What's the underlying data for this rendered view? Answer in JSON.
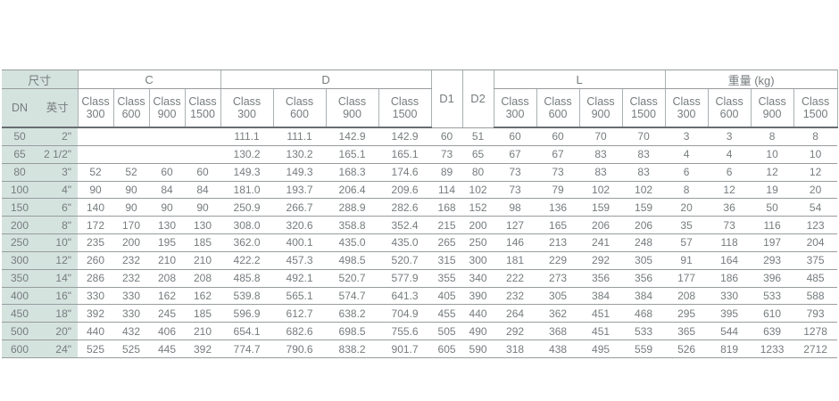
{
  "table": {
    "header": {
      "size_label": "尺寸",
      "dn_label": "DN",
      "inch_label": "英寸",
      "c_label": "C",
      "d_label": "D",
      "d1_label": "D1",
      "d2_label": "D2",
      "l_label": "L",
      "weight_label": "重量 (kg)",
      "class_word": "Class",
      "class_ratings": [
        "300",
        "600",
        "900",
        "1500"
      ],
      "sections": [
        "c",
        "d",
        "l",
        "w"
      ]
    },
    "colors": {
      "size_column_bg": "#d5e3df",
      "text": "#767c7e",
      "row_line": "#979c9e",
      "header_heavy_line": "#676d70",
      "header_vertical_line": "#abb1b3"
    },
    "rows": [
      {
        "dn": "50",
        "inch": "2\"",
        "c": [
          "",
          "",
          "",
          ""
        ],
        "d": [
          "111.1",
          "111.1",
          "142.9",
          "142.9"
        ],
        "d1": "60",
        "d2": "51",
        "l": [
          "60",
          "60",
          "70",
          "70"
        ],
        "w": [
          "3",
          "3",
          "8",
          "8"
        ]
      },
      {
        "dn": "65",
        "inch": "2 1/2\"",
        "c": [
          "",
          "",
          "",
          ""
        ],
        "d": [
          "130.2",
          "130.2",
          "165.1",
          "165.1"
        ],
        "d1": "73",
        "d2": "65",
        "l": [
          "67",
          "67",
          "83",
          "83"
        ],
        "w": [
          "4",
          "4",
          "10",
          "10"
        ]
      },
      {
        "dn": "80",
        "inch": "3\"",
        "c": [
          "52",
          "52",
          "60",
          "60"
        ],
        "d": [
          "149.3",
          "149.3",
          "168.3",
          "174.6"
        ],
        "d1": "89",
        "d2": "80",
        "l": [
          "73",
          "73",
          "83",
          "83"
        ],
        "w": [
          "6",
          "6",
          "12",
          "12"
        ]
      },
      {
        "dn": "100",
        "inch": "4\"",
        "c": [
          "90",
          "90",
          "84",
          "84"
        ],
        "d": [
          "181.0",
          "193.7",
          "206.4",
          "209.6"
        ],
        "d1": "114",
        "d2": "102",
        "l": [
          "73",
          "79",
          "102",
          "102"
        ],
        "w": [
          "8",
          "12",
          "19",
          "20"
        ]
      },
      {
        "dn": "150",
        "inch": "6\"",
        "c": [
          "140",
          "90",
          "90",
          "90"
        ],
        "d": [
          "250.9",
          "266.7",
          "288.9",
          "282.6"
        ],
        "d1": "168",
        "d2": "152",
        "l": [
          "98",
          "136",
          "159",
          "159"
        ],
        "w": [
          "20",
          "36",
          "50",
          "54"
        ]
      },
      {
        "dn": "200",
        "inch": "8\"",
        "c": [
          "172",
          "170",
          "130",
          "130"
        ],
        "d": [
          "308.0",
          "320.6",
          "358.8",
          "352.4"
        ],
        "d1": "215",
        "d2": "200",
        "l": [
          "127",
          "165",
          "206",
          "206"
        ],
        "w": [
          "35",
          "73",
          "116",
          "123"
        ]
      },
      {
        "dn": "250",
        "inch": "10\"",
        "c": [
          "235",
          "200",
          "195",
          "185"
        ],
        "d": [
          "362.0",
          "400.1",
          "435.0",
          "435.0"
        ],
        "d1": "265",
        "d2": "250",
        "l": [
          "146",
          "213",
          "241",
          "248"
        ],
        "w": [
          "57",
          "118",
          "197",
          "204"
        ]
      },
      {
        "dn": "300",
        "inch": "12\"",
        "c": [
          "260",
          "232",
          "210",
          "210"
        ],
        "d": [
          "422.2",
          "457.3",
          "498.5",
          "520.7"
        ],
        "d1": "315",
        "d2": "300",
        "l": [
          "181",
          "229",
          "292",
          "305"
        ],
        "w": [
          "91",
          "164",
          "293",
          "375"
        ]
      },
      {
        "dn": "350",
        "inch": "14\"",
        "c": [
          "286",
          "232",
          "208",
          "208"
        ],
        "d": [
          "485.8",
          "492.1",
          "520.7",
          "577.9"
        ],
        "d1": "355",
        "d2": "340",
        "l": [
          "222",
          "273",
          "356",
          "356"
        ],
        "w": [
          "177",
          "186",
          "396",
          "485"
        ]
      },
      {
        "dn": "400",
        "inch": "16\"",
        "c": [
          "330",
          "330",
          "162",
          "162"
        ],
        "d": [
          "539.8",
          "565.1",
          "574.7",
          "641.3"
        ],
        "d1": "405",
        "d2": "390",
        "l": [
          "232",
          "305",
          "384",
          "384"
        ],
        "w": [
          "208",
          "330",
          "533",
          "588"
        ]
      },
      {
        "dn": "450",
        "inch": "18\"",
        "c": [
          "392",
          "330",
          "245",
          "185"
        ],
        "d": [
          "596.9",
          "612.7",
          "638.2",
          "704.9"
        ],
        "d1": "455",
        "d2": "440",
        "l": [
          "264",
          "362",
          "451",
          "468"
        ],
        "w": [
          "295",
          "395",
          "610",
          "793"
        ]
      },
      {
        "dn": "500",
        "inch": "20\"",
        "c": [
          "440",
          "432",
          "406",
          "210"
        ],
        "d": [
          "654.1",
          "682.6",
          "698.5",
          "755.6"
        ],
        "d1": "505",
        "d2": "490",
        "l": [
          "292",
          "368",
          "451",
          "533"
        ],
        "w": [
          "365",
          "544",
          "639",
          "1278"
        ]
      },
      {
        "dn": "600",
        "inch": "24\"",
        "c": [
          "525",
          "525",
          "445",
          "392"
        ],
        "d": [
          "774.7",
          "790.6",
          "838.2",
          "901.7"
        ],
        "d1": "605",
        "d2": "590",
        "l": [
          "318",
          "438",
          "495",
          "559"
        ],
        "w": [
          "526",
          "819",
          "1233",
          "2712"
        ]
      }
    ]
  }
}
